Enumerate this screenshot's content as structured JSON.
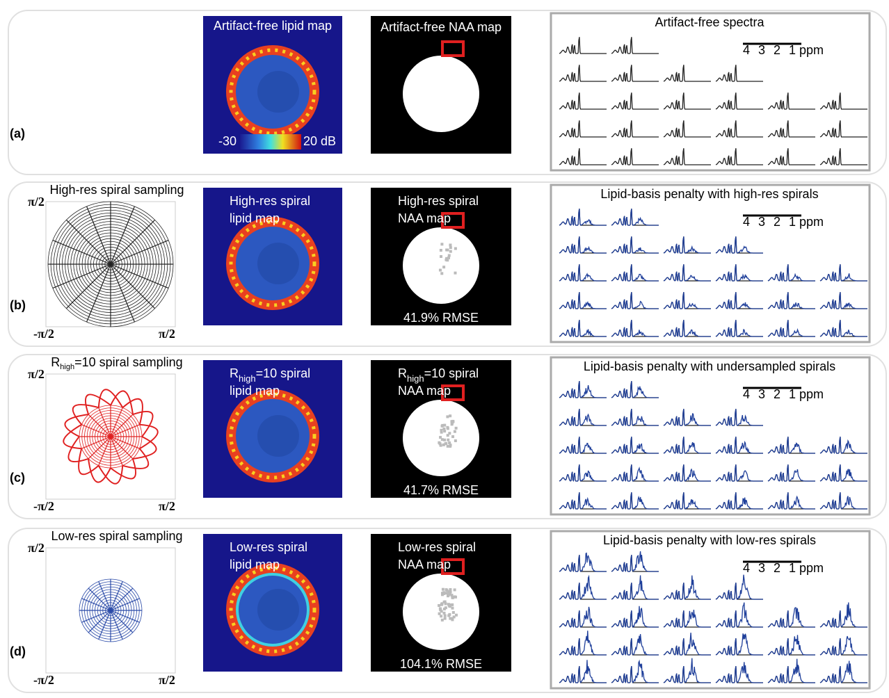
{
  "rows": [
    {
      "label": "(a)",
      "lipid_map": {
        "title_lines": [
          [
            "Artifact-free lipid map"
          ]
        ],
        "colorbar_labels": [
          "-30",
          "20 dB"
        ]
      },
      "naa_map": {
        "title_lines": [
          [
            "Artifact-free NAA map"
          ]
        ]
      },
      "spectra": {
        "title": "Artifact-free spectra",
        "scale_labels": [
          "4",
          "3",
          "2",
          "1 ppm"
        ]
      }
    },
    {
      "label": "(b)",
      "sampling": {
        "title_lines": [
          [
            "High-res spiral sampling"
          ]
        ],
        "axis_labels": {
          "top": "π/2",
          "left": "-π/2",
          "right": "π/2"
        }
      },
      "lipid_map": {
        "title_lines": [
          [
            "High-res spiral"
          ],
          [
            "lipid map"
          ]
        ]
      },
      "naa_map": {
        "title_lines": [
          [
            "High-res spiral"
          ],
          [
            "NAA map"
          ]
        ],
        "rmse": "41.9% RMSE"
      },
      "spectra": {
        "title": "Lipid-basis penalty with high-res spirals",
        "scale_labels": [
          "4",
          "3",
          "2",
          "1 ppm"
        ]
      }
    },
    {
      "label": "(c)",
      "sampling": {
        "title_lines": [
          [
            "R",
            {
              "sub": "high"
            },
            "=10 spiral sampling"
          ]
        ],
        "axis_labels": {
          "top": "π/2",
          "left": "-π/2",
          "right": "π/2"
        }
      },
      "lipid_map": {
        "title_lines": [
          [
            "R",
            {
              "sub": "high"
            },
            "=10 spiral"
          ],
          [
            "lipid map"
          ]
        ]
      },
      "naa_map": {
        "title_lines": [
          [
            "R",
            {
              "sub": "high"
            },
            "=10 spiral"
          ],
          [
            "NAA map"
          ]
        ],
        "rmse": "41.7% RMSE"
      },
      "spectra": {
        "title": "Lipid-basis penalty with undersampled spirals",
        "scale_labels": [
          "4",
          "3",
          "2",
          "1 ppm"
        ]
      }
    },
    {
      "label": "(d)",
      "sampling": {
        "title_lines": [
          [
            "Low-res spiral sampling"
          ]
        ],
        "axis_labels": {
          "top": "π/2",
          "left": "-π/2",
          "right": "π/2"
        }
      },
      "lipid_map": {
        "title_lines": [
          [
            "Low-res spiral"
          ],
          [
            "lipid map"
          ]
        ]
      },
      "naa_map": {
        "title_lines": [
          [
            "Low-res spiral"
          ],
          [
            "NAA map"
          ]
        ],
        "rmse": "104.1% RMSE"
      },
      "spectra": {
        "title": "Lipid-basis penalty with low-res spirals",
        "scale_labels": [
          "4",
          "3",
          "2",
          "1 ppm"
        ]
      }
    }
  ]
}
